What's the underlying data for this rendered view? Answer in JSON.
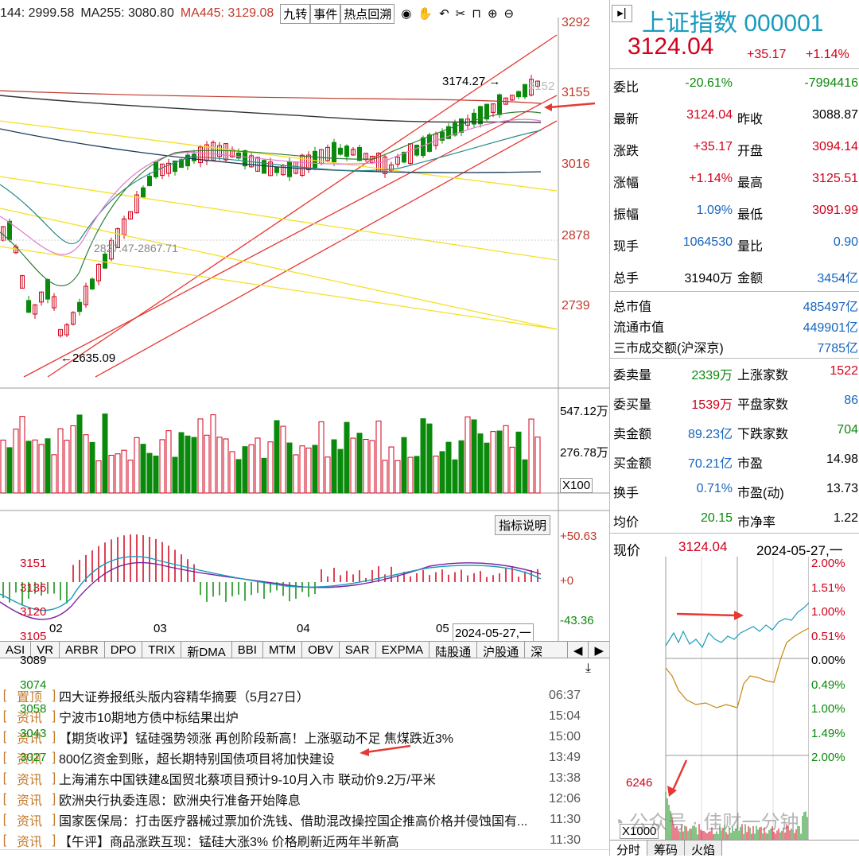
{
  "top_bar": {
    "ma_a": "144: 2999.58",
    "ma_b": "MA255: 3080.80",
    "ma_c": "MA445: 3129.08",
    "buttons": [
      "九转",
      "事件",
      "热点回溯"
    ]
  },
  "price_axis": [
    "3292",
    "3155",
    "3016",
    "2878",
    "2739"
  ],
  "annotations": {
    "high": "3174.27",
    "high_partial": "3152",
    "low": "2635.09",
    "range": "2827.47-2867.71"
  },
  "volume_axis": {
    "top": "547.12万",
    "mid": "276.78万",
    "unit": "X100"
  },
  "macd_axis": {
    "top": "+50.63",
    "mid": "+0",
    "bottom": "-43.36",
    "button": "指标说明"
  },
  "date_axis": [
    "02",
    "03",
    "04",
    "05"
  ],
  "date_cursor": "2024-05-27,一",
  "indicator_tabs": [
    "ASI",
    "VR",
    "ARBR",
    "DPO",
    "TRIX",
    "新DMA",
    "BBI",
    "MTM",
    "OBV",
    "SAR",
    "EXPMA",
    "陆股通",
    "沪股通",
    "深"
  ],
  "news": [
    {
      "tag": "置顶",
      "title": "四大证券报纸头版内容精华摘要（5月27日）",
      "time": "06:37"
    },
    {
      "tag": "资讯",
      "title": "宁波市10期地方债中标结果出炉",
      "time": "15:04"
    },
    {
      "tag": "资讯",
      "title": "【期货收评】锰硅强势领涨 再创阶段新高！上涨驱动不足 焦煤跌近3%",
      "time": "15:00"
    },
    {
      "tag": "资讯",
      "title": "800亿资金到账，超长期特别国债项目将加快建设",
      "time": "13:49"
    },
    {
      "tag": "资讯",
      "title": "上海浦东中国铁建&国贸北蔡项目预计9-10月入市 联动价9.2万/平米",
      "time": "13:38"
    },
    {
      "tag": "资讯",
      "title": "欧洲央行执委连恩：欧洲央行准备开始降息",
      "time": "12:06"
    },
    {
      "tag": "资讯",
      "title": "国家医保局：打击医疗器械过票加价洗钱、借助混改操控国企推高价格并侵蚀国有...",
      "time": "11:30"
    },
    {
      "tag": "资讯",
      "title": "【午评】商品涨跌互现：锰硅大涨3% 价格刷新近两年半新高",
      "time": "11:30"
    }
  ],
  "quote": {
    "title": "上证指数 000001",
    "price": "3124.04",
    "change": "+35.17",
    "change_pct": "+1.14%",
    "rows": [
      {
        "l1": "委比",
        "v1": "-20.61%",
        "c1": "green",
        "l2": "",
        "v2": "-7994416",
        "c2": "green"
      },
      {
        "l1": "最新",
        "v1": "3124.04",
        "c1": "red",
        "l2": "昨收",
        "v2": "3088.87",
        "c2": "black"
      },
      {
        "l1": "涨跌",
        "v1": "+35.17",
        "c1": "red",
        "l2": "开盘",
        "v2": "3094.14",
        "c2": "red"
      },
      {
        "l1": "涨幅",
        "v1": "+1.14%",
        "c1": "red",
        "l2": "最高",
        "v2": "3125.51",
        "c2": "red"
      },
      {
        "l1": "振幅",
        "v1": "1.09%",
        "c1": "blue",
        "l2": "最低",
        "v2": "3091.99",
        "c2": "red"
      },
      {
        "l1": "现手",
        "v1": "1064530",
        "c1": "blue",
        "l2": "量比",
        "v2": "0.90",
        "c2": "blue"
      },
      {
        "l1": "总手",
        "v1": "31940万",
        "c1": "black",
        "l2": "金额",
        "v2": "3454亿",
        "c2": "blue"
      }
    ],
    "caps": [
      {
        "label": "总市值",
        "value": "485497亿"
      },
      {
        "label": "流通市值",
        "value": "449901亿"
      },
      {
        "label": "三市成交额(沪深京)",
        "value": "7785亿"
      }
    ],
    "rows2": [
      {
        "l1": "委卖量",
        "v1": "2339万",
        "c1": "green",
        "l2": "上涨家数",
        "v2": "1522",
        "c2": "red"
      },
      {
        "l1": "委买量",
        "v1": "1539万",
        "c1": "red",
        "l2": "平盘家数",
        "v2": "86",
        "c2": "blue"
      },
      {
        "l1": "卖金额",
        "v1": "89.23亿",
        "c1": "blue",
        "l2": "下跌家数",
        "v2": "704",
        "c2": "green"
      },
      {
        "l1": "买金额",
        "v1": "70.21亿",
        "c1": "blue",
        "l2": "市盈",
        "v2": "14.98",
        "c2": "black"
      },
      {
        "l1": "换手",
        "v1": "0.71%",
        "c1": "blue",
        "l2": "市盈(动)",
        "v2": "13.73",
        "c2": "black"
      },
      {
        "l1": "均价",
        "v1": "20.15",
        "c1": "green",
        "l2": "市净率",
        "v2": "1.22",
        "c2": "black"
      }
    ]
  },
  "intraday": {
    "label": "现价",
    "price": "3124.04",
    "date": "2024-05-27,一",
    "left_axis": [
      "3151",
      "3136",
      "3120",
      "3105",
      "3089",
      "3074",
      "3058",
      "3043",
      "3027"
    ],
    "right_axis": [
      "2.00%",
      "1.51%",
      "1.00%",
      "0.51%",
      "0.00%",
      "0.49%",
      "1.00%",
      "1.49%",
      "2.00%"
    ],
    "vol_axis": "6246",
    "vol_unit": "X1000",
    "tabs": [
      "分时",
      "筹码",
      "火焰"
    ]
  },
  "watermark": "公众号 · 佳财一分钟",
  "colors": {
    "up": "#d0021b",
    "down": "#0a8a0a",
    "accent": "#1a9bbd",
    "arrow": "#e53935"
  }
}
